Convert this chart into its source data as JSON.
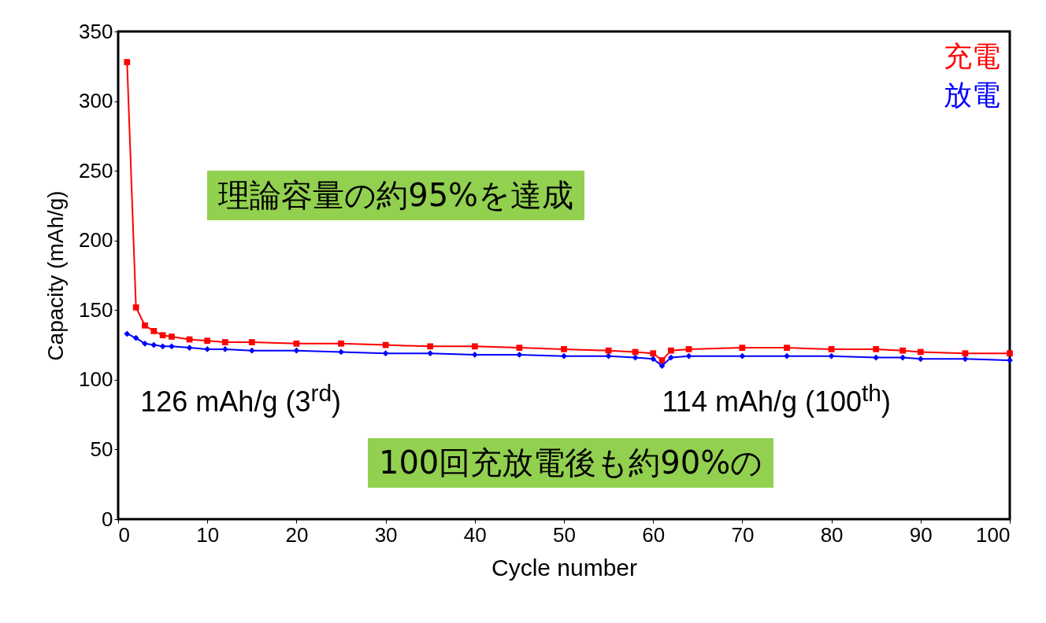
{
  "chart_data": {
    "type": "line",
    "xlabel": "Cycle number",
    "ylabel": "Capacity (mAh/g)",
    "x": [
      1,
      2,
      3,
      4,
      5,
      6,
      8,
      10,
      12,
      15,
      20,
      25,
      30,
      35,
      40,
      45,
      50,
      55,
      58,
      60,
      61,
      62,
      64,
      70,
      75,
      80,
      85,
      88,
      90,
      95,
      100
    ],
    "xlim": [
      0,
      100
    ],
    "xticks": [
      0,
      10,
      20,
      30,
      40,
      50,
      60,
      70,
      80,
      90,
      100
    ],
    "ylim": [
      0,
      350
    ],
    "yticks": [
      0,
      50,
      100,
      150,
      200,
      250,
      300,
      350
    ],
    "series": [
      {
        "name": "充電",
        "color": "#ff0000",
        "marker": "square",
        "values": [
          328,
          152,
          139,
          135,
          132,
          131,
          129,
          128,
          127,
          127,
          126,
          126,
          125,
          124,
          124,
          123,
          122,
          121,
          120,
          119,
          114,
          121,
          122,
          123,
          123,
          122,
          122,
          121,
          120,
          119,
          119
        ]
      },
      {
        "name": "放電",
        "color": "#0000ff",
        "marker": "diamond",
        "values": [
          133,
          130,
          126,
          125,
          124,
          124,
          123,
          122,
          122,
          121,
          121,
          120,
          119,
          119,
          118,
          118,
          117,
          117,
          116,
          115,
          110,
          116,
          117,
          117,
          117,
          117,
          116,
          116,
          115,
          115,
          114
        ]
      }
    ],
    "legend": "top right",
    "grid": false,
    "annotations": [
      "理論容量の約95%を達成",
      "100回充放電後も約90%の",
      "126 mAh/g (3$^{rd}$)",
      "114 mAh/g (100$^{th}$)"
    ]
  }
}
